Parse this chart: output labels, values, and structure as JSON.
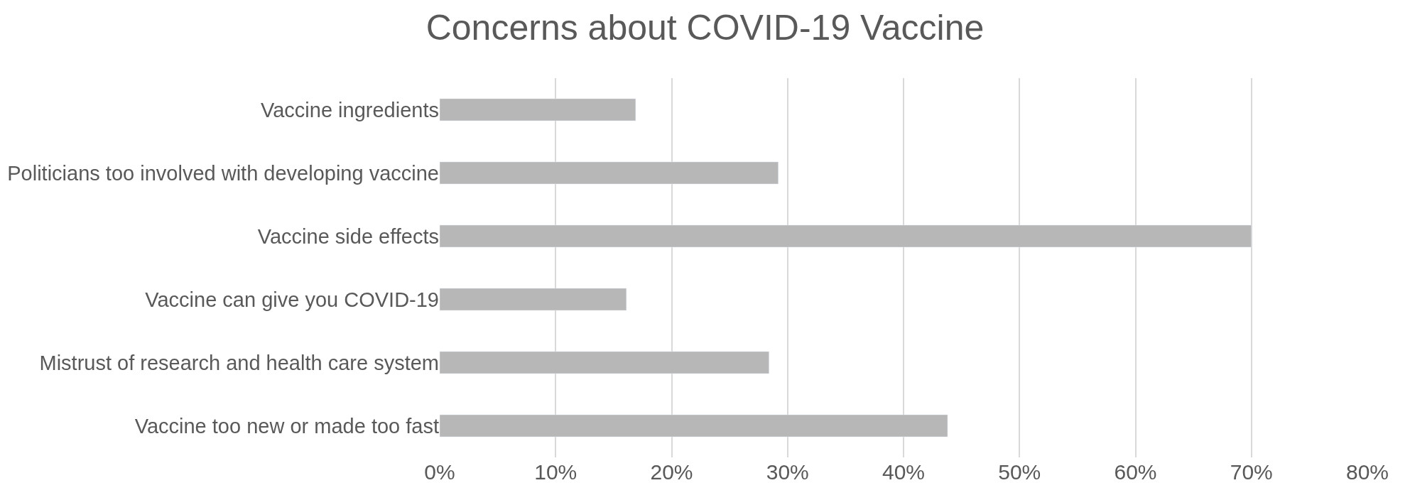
{
  "chart_data": {
    "type": "bar",
    "orientation": "horizontal",
    "title": "Concerns about COVID-19 Vaccine",
    "categories": [
      "Vaccine ingredients",
      "Politicians too involved with developing vaccine",
      "Vaccine side effects",
      "Vaccine can give you COVID-19",
      "Mistrust of research and health care system",
      "Vaccine too new or made too fast"
    ],
    "values": [
      16.9,
      29.2,
      70,
      16.1,
      28.4,
      43.8
    ],
    "color": "#b7b7b7",
    "xlim": [
      0,
      80
    ],
    "xticks": [
      {
        "value": 0,
        "label": "0%"
      },
      {
        "value": 10,
        "label": "10%"
      },
      {
        "value": 20,
        "label": "20%"
      },
      {
        "value": 30,
        "label": "30%"
      },
      {
        "value": 40,
        "label": "40%"
      },
      {
        "value": 50,
        "label": "50%"
      },
      {
        "value": 60,
        "label": "60%"
      },
      {
        "value": 70,
        "label": "70%"
      },
      {
        "value": 80,
        "label": "80%"
      }
    ],
    "grid": "x"
  }
}
